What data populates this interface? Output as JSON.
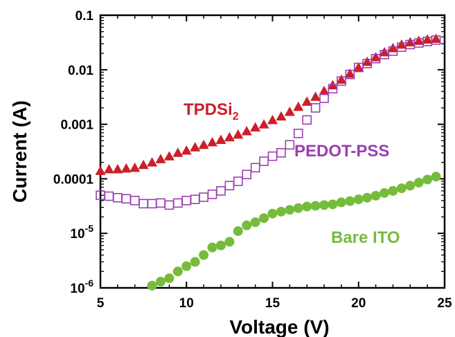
{
  "chart_data": {
    "type": "scatter",
    "xlabel": "Voltage (V)",
    "ylabel": "Current (A)",
    "xlim": [
      5,
      25
    ],
    "ylim": [
      1e-06,
      0.1
    ],
    "yscale": "log",
    "xticks": [
      5,
      10,
      15,
      20,
      25
    ],
    "xtick_labels": [
      "5",
      "10",
      "15",
      "20",
      "25"
    ],
    "yticks": [
      1e-06,
      1e-05,
      0.0001,
      0.001,
      0.01,
      0.1
    ],
    "ytick_labels": [
      {
        "base": "10",
        "exp": "-6"
      },
      {
        "base": "10",
        "exp": "-5"
      },
      {
        "text": "0.0001"
      },
      {
        "text": "0.001"
      },
      {
        "text": "0.01"
      },
      {
        "text": "0.1"
      }
    ],
    "grid": false,
    "series": [
      {
        "name": "TPDSi2",
        "label_main": "TPDSi",
        "label_sub": "2",
        "color": "#cc1f2a",
        "marker": "filled-triangle",
        "x": [
          5.0,
          5.5,
          6.0,
          6.5,
          7.0,
          7.5,
          8.0,
          8.5,
          9.0,
          9.5,
          10.0,
          10.5,
          11.0,
          11.5,
          12.0,
          12.5,
          13.0,
          13.5,
          14.0,
          14.5,
          15.0,
          15.5,
          16.0,
          16.5,
          17.0,
          17.5,
          18.0,
          18.5,
          19.0,
          19.5,
          20.0,
          20.5,
          21.0,
          21.5,
          22.0,
          22.5,
          23.0,
          23.5,
          24.0,
          24.5
        ],
        "y": [
          0.00014,
          0.00015,
          0.00015,
          0.000155,
          0.00016,
          0.00018,
          0.0002,
          0.00023,
          0.00026,
          0.0003,
          0.00033,
          0.00038,
          0.00042,
          0.00047,
          0.00052,
          0.00058,
          0.00065,
          0.00075,
          0.00088,
          0.001,
          0.0012,
          0.0014,
          0.0017,
          0.0021,
          0.0026,
          0.0032,
          0.0041,
          0.0052,
          0.0066,
          0.0085,
          0.011,
          0.014,
          0.017,
          0.021,
          0.025,
          0.029,
          0.032,
          0.034,
          0.036,
          0.037
        ]
      },
      {
        "name": "PEDOT-PSS",
        "color": "#9a3fb0",
        "marker": "open-square",
        "x": [
          5.0,
          5.5,
          6.0,
          6.5,
          7.0,
          7.5,
          8.0,
          8.5,
          9.0,
          9.5,
          10.0,
          10.5,
          11.0,
          11.5,
          12.0,
          12.5,
          13.0,
          13.5,
          14.0,
          14.5,
          15.0,
          15.5,
          16.0,
          16.5,
          17.0,
          17.5,
          18.0,
          18.5,
          19.0,
          19.5,
          20.0,
          20.5,
          21.0,
          21.5,
          22.0,
          22.5,
          23.0,
          23.5,
          24.0,
          24.5
        ],
        "y": [
          5e-05,
          4.8e-05,
          4.5e-05,
          4.3e-05,
          4e-05,
          3.5e-05,
          3.5e-05,
          3.6e-05,
          3.3e-05,
          3.6e-05,
          4e-05,
          4.2e-05,
          4.6e-05,
          5.2e-05,
          6e-05,
          7.5e-05,
          9e-05,
          0.00012,
          0.00016,
          0.00021,
          0.00026,
          0.0003,
          0.00042,
          0.00068,
          0.0012,
          0.002,
          0.003,
          0.0045,
          0.0062,
          0.0082,
          0.011,
          0.013,
          0.016,
          0.019,
          0.022,
          0.026,
          0.029,
          0.031,
          0.033,
          0.035
        ]
      },
      {
        "name": "Bare ITO",
        "color": "#76bc3b",
        "marker": "filled-circle",
        "x": [
          8.0,
          8.5,
          9.0,
          9.5,
          10.0,
          10.5,
          11.0,
          11.5,
          12.0,
          12.5,
          13.0,
          13.5,
          14.0,
          14.5,
          15.0,
          15.5,
          16.0,
          16.5,
          17.0,
          17.5,
          18.0,
          18.5,
          19.0,
          19.5,
          20.0,
          20.5,
          21.0,
          21.5,
          22.0,
          22.5,
          23.0,
          23.5,
          24.0,
          24.5
        ],
        "y": [
          1.1e-06,
          1.3e-06,
          1.5e-06,
          2e-06,
          2.5e-06,
          3e-06,
          4e-06,
          5.5e-06,
          6e-06,
          7e-06,
          1.1e-05,
          1.4e-05,
          1.6e-05,
          1.9e-05,
          2.3e-05,
          2.5e-05,
          2.7e-05,
          2.9e-05,
          3.1e-05,
          3.2e-05,
          3.3e-05,
          3.4e-05,
          3.7e-05,
          3.9e-05,
          4.2e-05,
          4.5e-05,
          4.9e-05,
          5.5e-05,
          6e-05,
          6.7e-05,
          7.5e-05,
          8.5e-05,
          9.7e-05,
          0.00011
        ]
      }
    ]
  }
}
